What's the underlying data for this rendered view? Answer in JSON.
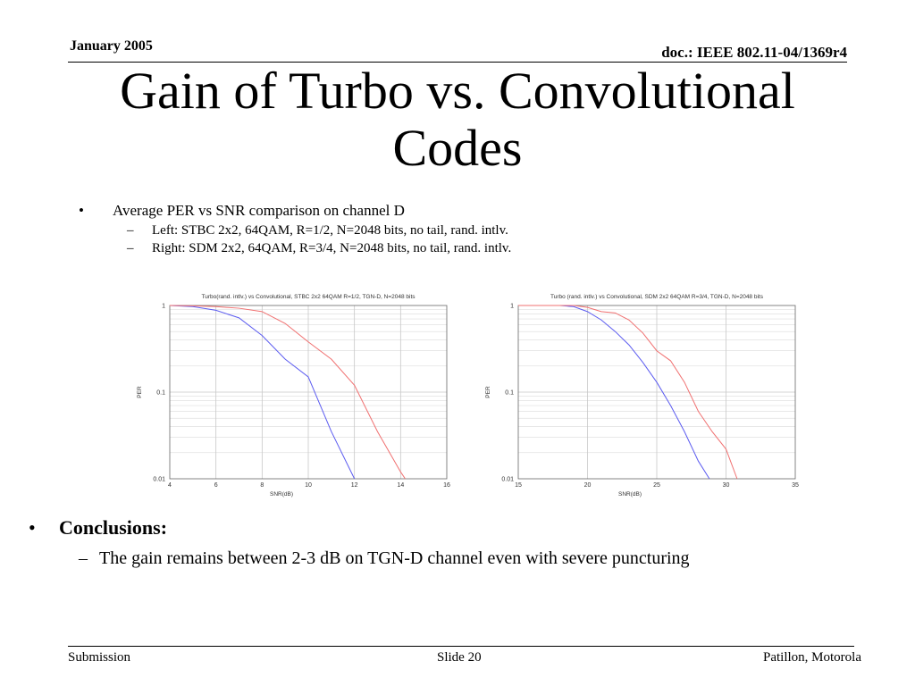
{
  "header": {
    "date": "January 2005",
    "doc": "doc.: IEEE 802.11-04/1369r4"
  },
  "title": {
    "line1": "Gain of Turbo vs. Convolutional",
    "line2": "Codes"
  },
  "bullets": {
    "main": "Average PER vs SNR comparison on channel D",
    "sub": [
      "Left: STBC 2x2, 64QAM, R=1/2, N=2048 bits, no tail, rand. intlv.",
      "Right: SDM 2x2, 64QAM, R=3/4, N=2048 bits, no tail, rand. intlv."
    ]
  },
  "conclusions": {
    "heading": "Conclusions:",
    "items": [
      "The gain remains between 2-3 dB on TGN-D channel even with severe puncturing"
    ]
  },
  "footer": {
    "left": "Submission",
    "center": "Slide 20",
    "right": "Patillon, Motorola"
  },
  "colors": {
    "turbo": "#5b5bf0",
    "convolutional": "#f07070",
    "grid": "#c8c8c8"
  },
  "chart_data": [
    {
      "type": "line",
      "title": "Turbo(rand. intlv.) vs Convolutional, STBC 2x2 64QAM R=1/2, TGN-D, N=2048 bits",
      "xlabel": "SNR(dB)",
      "ylabel": "PER",
      "xlim": [
        4,
        16
      ],
      "ylim": [
        0.01,
        1
      ],
      "yscale": "log",
      "xticks": [
        4,
        6,
        8,
        10,
        12,
        14,
        16
      ],
      "yticks": [
        0.01,
        0.1,
        1
      ],
      "ytick_labels": [
        "0.01",
        "0.1",
        "1"
      ],
      "grid": true,
      "series": [
        {
          "color_key": "turbo",
          "x": [
            4,
            5,
            6,
            7,
            8,
            9,
            10,
            11,
            12
          ],
          "y": [
            1,
            0.97,
            0.88,
            0.72,
            0.45,
            0.24,
            0.15,
            0.035,
            0.01
          ]
        },
        {
          "color_key": "convolutional",
          "x": [
            4,
            5,
            6,
            7,
            8,
            9,
            10,
            11,
            12,
            13,
            14,
            14.2
          ],
          "y": [
            1,
            0.99,
            0.97,
            0.93,
            0.85,
            0.62,
            0.38,
            0.24,
            0.12,
            0.035,
            0.012,
            0.01
          ]
        }
      ]
    },
    {
      "type": "line",
      "title": "Turbo (rand. intlv.) vs Convolutional, SDM 2x2 64QAM R=3/4, TGN-D, N=2048 bits",
      "xlabel": "SNR(dB)",
      "ylabel": "PER",
      "xlim": [
        15,
        35
      ],
      "ylim": [
        0.01,
        1
      ],
      "yscale": "log",
      "xticks": [
        15,
        20,
        25,
        30,
        35
      ],
      "yticks": [
        0.01,
        0.1,
        1
      ],
      "ytick_labels": [
        "0.01",
        "0.1",
        "1"
      ],
      "grid": true,
      "series": [
        {
          "color_key": "turbo",
          "x": [
            15,
            18,
            19,
            20,
            21,
            22,
            23,
            24,
            25,
            26,
            27,
            28,
            28.8
          ],
          "y": [
            1,
            1,
            0.97,
            0.85,
            0.68,
            0.5,
            0.35,
            0.22,
            0.13,
            0.07,
            0.035,
            0.016,
            0.01
          ]
        },
        {
          "color_key": "convolutional",
          "x": [
            15,
            19,
            20,
            21,
            22,
            23,
            24,
            25,
            26,
            27,
            28,
            29,
            30,
            30.8
          ],
          "y": [
            1,
            1,
            0.95,
            0.85,
            0.82,
            0.68,
            0.48,
            0.3,
            0.23,
            0.13,
            0.06,
            0.035,
            0.022,
            0.01
          ]
        }
      ]
    }
  ]
}
